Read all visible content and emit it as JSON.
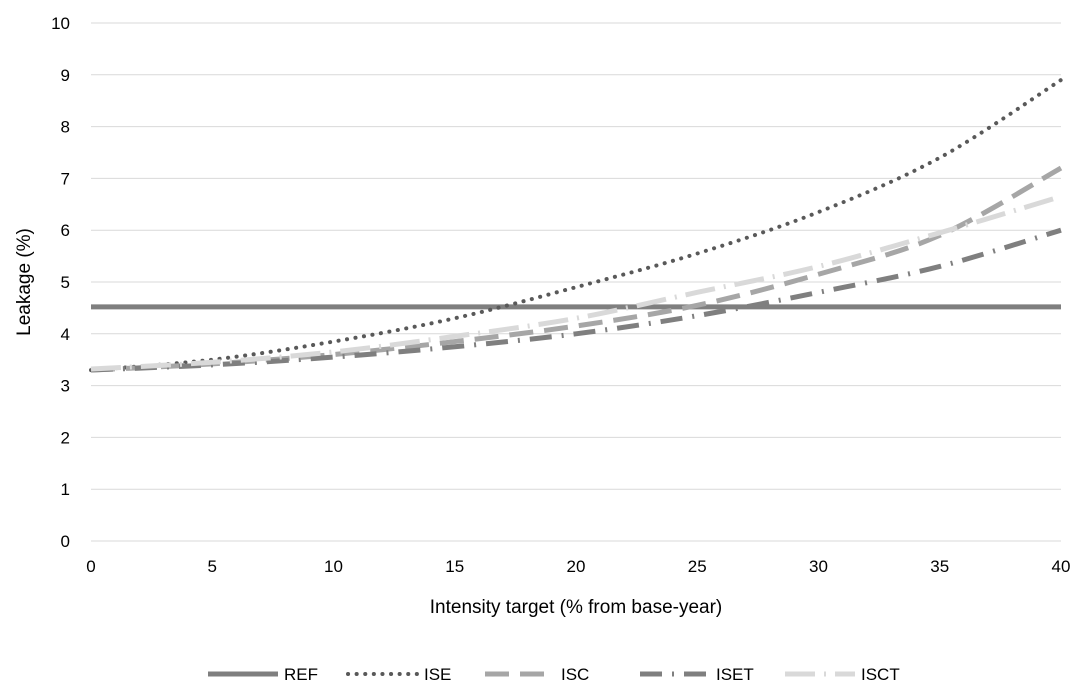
{
  "chart_data": {
    "type": "line",
    "xlabel": "Intensity target (% from base-year)",
    "ylabel": "Leakage (%)",
    "xlim": [
      0,
      40
    ],
    "ylim": [
      0,
      10
    ],
    "x_ticks": [
      0,
      5,
      10,
      15,
      20,
      25,
      30,
      35,
      40
    ],
    "y_ticks": [
      0,
      1,
      2,
      3,
      4,
      5,
      6,
      7,
      8,
      9,
      10
    ],
    "grid": "horizontal",
    "legend_position": "bottom",
    "x": [
      0,
      5,
      10,
      15,
      20,
      25,
      30,
      35,
      40
    ],
    "series": [
      {
        "name": "REF",
        "style": "solid",
        "color": "#7f7f7f",
        "values": [
          4.52,
          4.52,
          4.52,
          4.52,
          4.52,
          4.52,
          4.52,
          4.52,
          4.52
        ]
      },
      {
        "name": "ISE",
        "style": "dotted",
        "color": "#595959",
        "values": [
          3.3,
          3.5,
          3.85,
          4.3,
          4.9,
          5.55,
          6.35,
          7.4,
          8.9
        ]
      },
      {
        "name": "ISC",
        "style": "dashed",
        "color": "#a6a6a6",
        "values": [
          3.3,
          3.42,
          3.6,
          3.85,
          4.15,
          4.55,
          5.15,
          5.9,
          7.2
        ]
      },
      {
        "name": "ISET",
        "style": "dash-dot",
        "color": "#7f7f7f",
        "values": [
          3.3,
          3.4,
          3.55,
          3.75,
          4.0,
          4.35,
          4.8,
          5.3,
          6.0
        ]
      },
      {
        "name": "ISCT",
        "style": "long-dash-dot",
        "color": "#d9d9d9",
        "values": [
          3.32,
          3.45,
          3.65,
          3.95,
          4.3,
          4.8,
          5.3,
          5.95,
          6.65
        ]
      }
    ]
  }
}
